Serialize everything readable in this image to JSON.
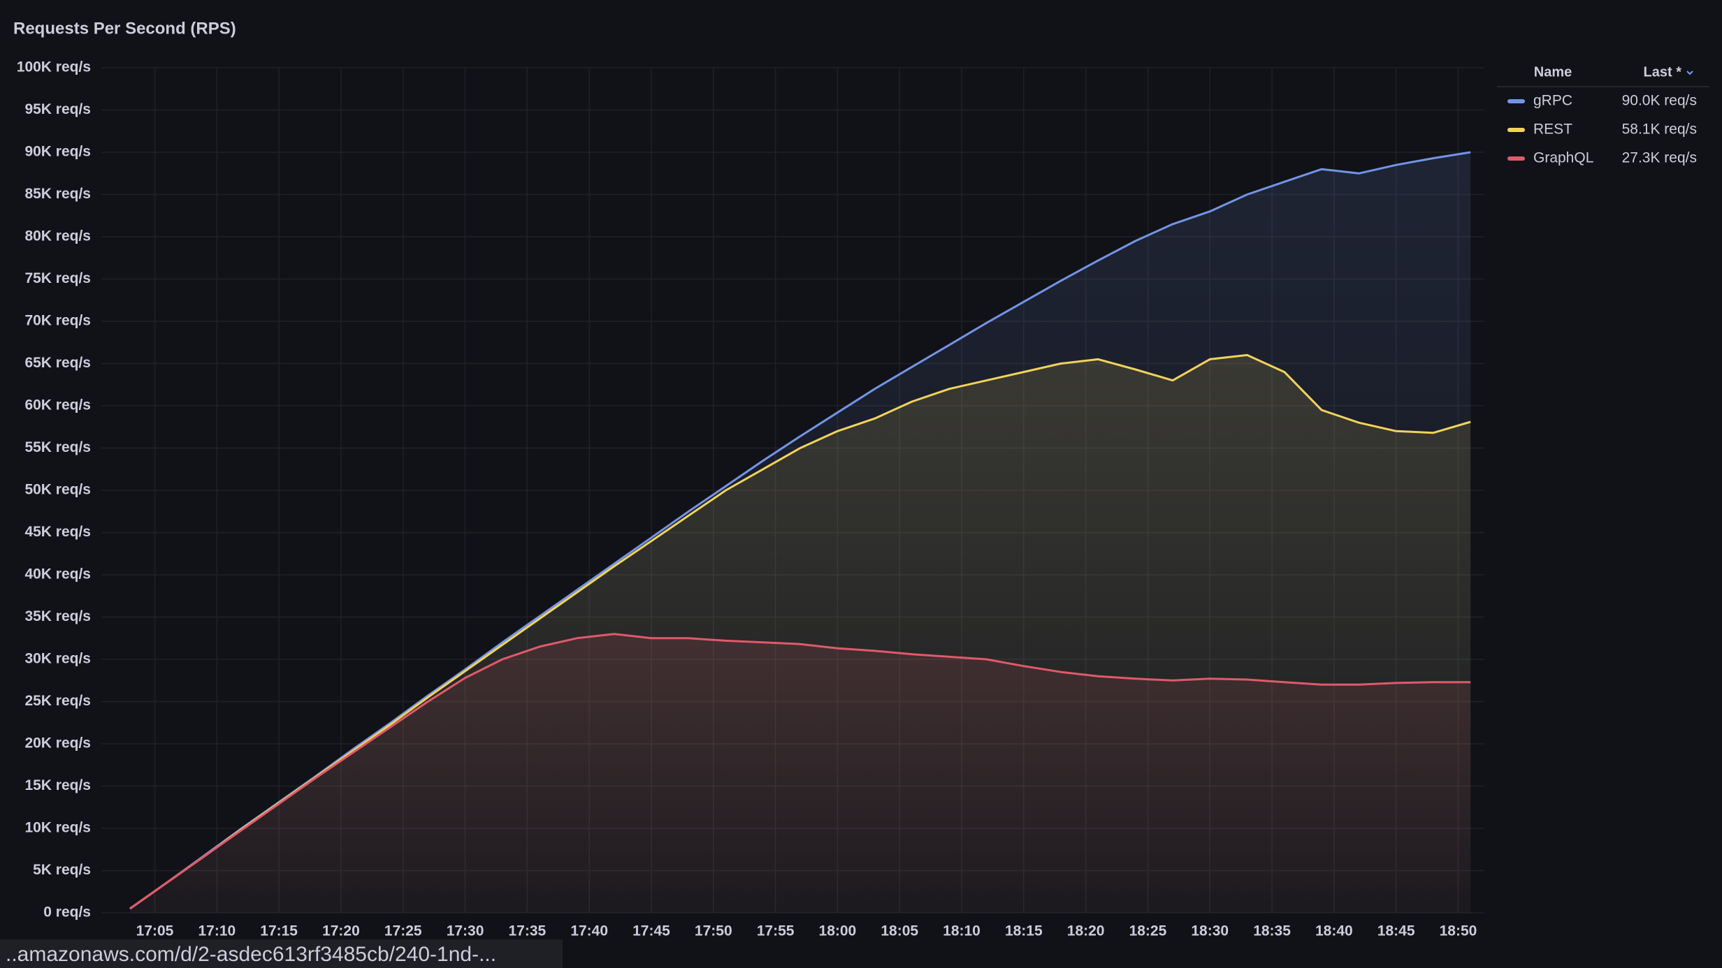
{
  "chart_data": {
    "type": "line",
    "title": "Requests Per Second (RPS)",
    "x": [
      "17:03",
      "17:06",
      "17:09",
      "17:12",
      "17:15",
      "17:18",
      "17:21",
      "17:24",
      "17:27",
      "17:30",
      "17:33",
      "17:36",
      "17:39",
      "17:42",
      "17:45",
      "17:48",
      "17:51",
      "17:54",
      "17:57",
      "18:00",
      "18:03",
      "18:06",
      "18:09",
      "18:12",
      "18:15",
      "18:18",
      "18:21",
      "18:24",
      "18:27",
      "18:30",
      "18:33",
      "18:36",
      "18:39",
      "18:42",
      "18:45",
      "18:48",
      "18:51"
    ],
    "xlim": [
      "17:03",
      "18:52"
    ],
    "xticks": [
      "17:05",
      "17:10",
      "17:15",
      "17:20",
      "17:25",
      "17:30",
      "17:35",
      "17:40",
      "17:45",
      "17:50",
      "17:55",
      "18:00",
      "18:05",
      "18:10",
      "18:15",
      "18:20",
      "18:25",
      "18:30",
      "18:35",
      "18:40",
      "18:45",
      "18:50"
    ],
    "ylim": [
      0,
      100000
    ],
    "yticks": [
      {
        "value": 0,
        "label": "0 req/s"
      },
      {
        "value": 5000,
        "label": "5K req/s"
      },
      {
        "value": 10000,
        "label": "10K req/s"
      },
      {
        "value": 15000,
        "label": "15K req/s"
      },
      {
        "value": 20000,
        "label": "20K req/s"
      },
      {
        "value": 25000,
        "label": "25K req/s"
      },
      {
        "value": 30000,
        "label": "30K req/s"
      },
      {
        "value": 35000,
        "label": "35K req/s"
      },
      {
        "value": 40000,
        "label": "40K req/s"
      },
      {
        "value": 45000,
        "label": "45K req/s"
      },
      {
        "value": 50000,
        "label": "50K req/s"
      },
      {
        "value": 55000,
        "label": "55K req/s"
      },
      {
        "value": 60000,
        "label": "60K req/s"
      },
      {
        "value": 65000,
        "label": "65K req/s"
      },
      {
        "value": 70000,
        "label": "70K req/s"
      },
      {
        "value": 75000,
        "label": "75K req/s"
      },
      {
        "value": 80000,
        "label": "80K req/s"
      },
      {
        "value": 85000,
        "label": "85K req/s"
      },
      {
        "value": 90000,
        "label": "90K req/s"
      },
      {
        "value": 95000,
        "label": "95K req/s"
      },
      {
        "value": 100000,
        "label": "100K req/s"
      }
    ],
    "grid": true,
    "legend_columns": [
      "Name",
      "Last *"
    ],
    "series": [
      {
        "name": "gRPC",
        "color": "#7394e6",
        "last": {
          "value": 90000,
          "label": "90.0K req/s"
        },
        "values": [
          500,
          3600,
          6800,
          10000,
          13100,
          16200,
          19400,
          22500,
          25700,
          28800,
          32000,
          35100,
          38200,
          41300,
          44400,
          47500,
          50500,
          53500,
          56400,
          59200,
          62000,
          64600,
          67200,
          69800,
          72300,
          74800,
          77200,
          79500,
          81500,
          83000,
          85000,
          86500,
          88000,
          87500,
          88500,
          89300,
          90000
        ]
      },
      {
        "name": "REST",
        "color": "#f2d35a",
        "last": {
          "value": 58100,
          "label": "58.1K req/s"
        },
        "values": [
          500,
          3600,
          6700,
          9900,
          13000,
          16100,
          19200,
          22300,
          25500,
          28600,
          31700,
          34800,
          37900,
          41000,
          44000,
          47000,
          50000,
          52500,
          55000,
          57000,
          58500,
          60500,
          62000,
          63000,
          64000,
          65000,
          65500,
          64300,
          63000,
          65500,
          66000,
          64000,
          59500,
          58000,
          57000,
          56800,
          58100
        ]
      },
      {
        "name": "GraphQL",
        "color": "#e05a6a",
        "last": {
          "value": 27300,
          "label": "27.3K req/s"
        },
        "values": [
          500,
          3600,
          6700,
          9800,
          12900,
          16000,
          19000,
          22000,
          25000,
          27800,
          30000,
          31500,
          32500,
          33000,
          32500,
          32500,
          32200,
          32000,
          31800,
          31300,
          31000,
          30600,
          30300,
          30000,
          29200,
          28500,
          28000,
          27700,
          27500,
          27700,
          27600,
          27300,
          27000,
          27000,
          27200,
          27300,
          27300
        ]
      }
    ]
  },
  "status_url": "..amazonaws.com/d/2-asdec613rf3485cb/240-1nd-..."
}
